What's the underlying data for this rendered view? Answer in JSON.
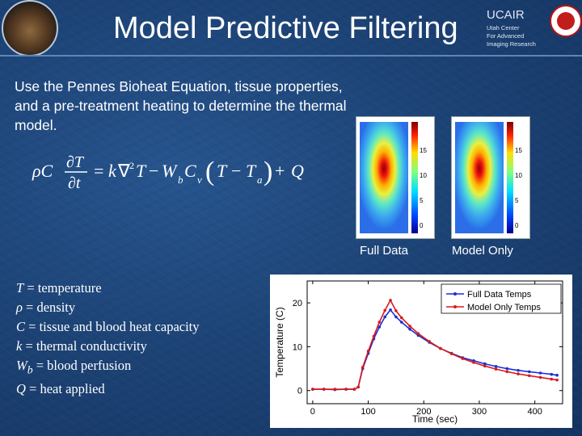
{
  "header": {
    "title": "Model Predictive Filtering",
    "ucair": "UCAIR",
    "ucair_sub_1": "Utah Center",
    "ucair_sub_2": "For Advanced",
    "ucair_sub_3": "Imaging Research"
  },
  "body": {
    "intro": "Use the Pennes Bioheat Equation, tissue properties, and a pre-treatment heating to determine the thermal model."
  },
  "heatmaps": {
    "left_label": "Full Data",
    "right_label": "Model Only",
    "ticks": [
      "15",
      "10",
      "5",
      "0"
    ]
  },
  "definitions": [
    {
      "sym": "T",
      "desc": " = temperature"
    },
    {
      "sym": "ρ",
      "desc": " = density"
    },
    {
      "sym": "C",
      "desc": " = tissue and blood heat capacity"
    },
    {
      "sym": "k",
      "desc": " = thermal conductivity"
    },
    {
      "sym": "W",
      "sub": "b",
      "desc": " = blood perfusion"
    },
    {
      "sym": "Q",
      "desc": " = heat applied"
    }
  ],
  "chart_data": {
    "type": "line",
    "xlabel": "Time (sec)",
    "ylabel": "Temperature (C)",
    "xlim": [
      -10,
      450
    ],
    "ylim": [
      -3,
      25
    ],
    "xticks": [
      0,
      100,
      200,
      300,
      400
    ],
    "yticks": [
      0,
      10,
      20
    ],
    "legend": "top-right",
    "series": [
      {
        "name": "Full Data Temps",
        "color": "#1b2fd6",
        "x": [
          0,
          20,
          40,
          60,
          75,
          82,
          90,
          100,
          110,
          120,
          130,
          140,
          150,
          160,
          175,
          190,
          210,
          230,
          250,
          270,
          290,
          310,
          330,
          350,
          370,
          390,
          410,
          430,
          440
        ],
        "y": [
          0.3,
          0.3,
          0.2,
          0.3,
          0.3,
          0.8,
          5.0,
          8.5,
          11.8,
          14.5,
          16.8,
          18.4,
          16.8,
          15.6,
          14.0,
          12.6,
          11.0,
          9.6,
          8.5,
          7.5,
          6.8,
          6.1,
          5.5,
          5.0,
          4.6,
          4.3,
          4.0,
          3.7,
          3.5
        ]
      },
      {
        "name": "Model Only Temps",
        "color": "#d81a1a",
        "x": [
          0,
          20,
          40,
          60,
          75,
          82,
          90,
          100,
          110,
          120,
          130,
          140,
          150,
          160,
          175,
          190,
          210,
          230,
          250,
          270,
          290,
          310,
          330,
          350,
          370,
          390,
          410,
          430,
          440
        ],
        "y": [
          0.3,
          0.3,
          0.3,
          0.3,
          0.3,
          0.8,
          5.3,
          9.0,
          12.4,
          15.6,
          18.3,
          20.6,
          18.2,
          16.6,
          14.7,
          13.0,
          11.2,
          9.6,
          8.4,
          7.3,
          6.4,
          5.6,
          4.9,
          4.3,
          3.8,
          3.4,
          3.0,
          2.6,
          2.4
        ]
      }
    ]
  }
}
